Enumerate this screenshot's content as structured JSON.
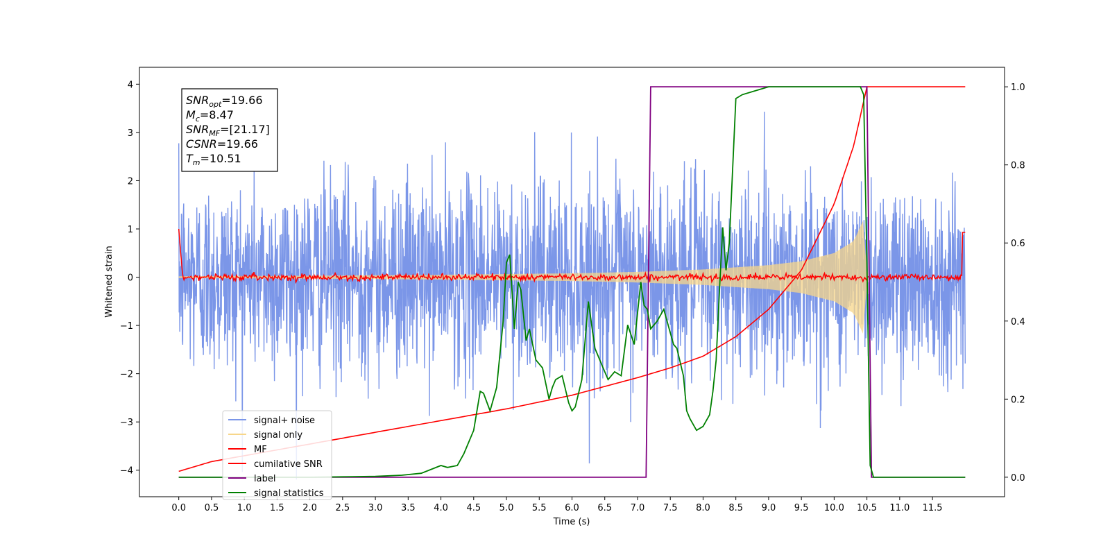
{
  "chart_data": {
    "type": "line",
    "xlabel": "Time (s)",
    "ylabel": "Whitened strain",
    "xlim": [
      -0.6,
      12.6
    ],
    "ylim": [
      -4.55,
      4.35
    ],
    "y2lim": [
      -0.05,
      1.05
    ],
    "x_ticks": [
      0.0,
      0.5,
      1.0,
      1.5,
      2.0,
      2.5,
      3.0,
      3.5,
      4.0,
      4.5,
      5.0,
      5.5,
      6.0,
      6.5,
      7.0,
      7.5,
      8.0,
      8.5,
      9.0,
      9.5,
      10.0,
      10.5,
      11.0,
      11.5
    ],
    "x_tick_labels": [
      "0.0",
      "0.5",
      "1.0",
      "1.5",
      "2.0",
      "2.5",
      "3.0",
      "3.5",
      "4.0",
      "4.5",
      "5.0",
      "5.5",
      "6.0",
      "6.5",
      "7.0",
      "7.5",
      "8.0",
      "8.5",
      "9.0",
      "9.5",
      "10.0",
      "10.5",
      "11.0",
      "11.5"
    ],
    "y_ticks": [
      -4,
      -3,
      -2,
      -1,
      0,
      1,
      2,
      3,
      4
    ],
    "y_tick_labels": [
      "−4",
      "−3",
      "−2",
      "−1",
      "0",
      "1",
      "2",
      "3",
      "4"
    ],
    "y2_ticks": [
      0.0,
      0.2,
      0.4,
      0.6,
      0.8,
      1.0
    ],
    "y2_tick_labels": [
      "0.0",
      "0.2",
      "0.4",
      "0.6",
      "0.8",
      "1.0"
    ],
    "grid": false,
    "legend_position": "lower-left",
    "legend": [
      {
        "label": "signal+ noise",
        "color": "#7b96e8"
      },
      {
        "label": "signal only",
        "color": "#f7d68a"
      },
      {
        "label": "MF",
        "color": "#ff0000"
      },
      {
        "label": "cumilative SNR",
        "color": "#ff0000"
      },
      {
        "label": "label",
        "color": "#800080"
      },
      {
        "label": "signal statistics",
        "color": "#008000"
      }
    ],
    "series": [
      {
        "name": "signal+ noise",
        "axis": "left",
        "color": "#7b96e8",
        "x_range": [
          0.0,
          12.0
        ],
        "amplitude_rms": 1.0,
        "peak_range": [
          -4.2,
          3.5
        ]
      },
      {
        "name": "signal only",
        "axis": "left",
        "color": "#f7d68a",
        "x_range": [
          0.0,
          12.0
        ],
        "envelope_x": [
          0,
          2,
          4,
          6,
          7,
          8,
          9,
          9.5,
          10.0,
          10.3,
          10.45,
          10.5
        ],
        "envelope_y": [
          0.02,
          0.03,
          0.05,
          0.08,
          0.11,
          0.16,
          0.25,
          0.33,
          0.5,
          0.75,
          1.2,
          0.0
        ]
      },
      {
        "name": "MF",
        "axis": "left",
        "color": "#ff0000",
        "x_range": [
          0.0,
          12.0
        ],
        "level": 0.0,
        "noise": 0.06,
        "start_value": 1.0,
        "end_value": 0.93
      },
      {
        "name": "cumilative SNR",
        "axis": "right",
        "color": "#ff0000",
        "x": [
          0.0,
          0.5,
          1.0,
          2.0,
          3.0,
          4.0,
          5.0,
          6.0,
          7.0,
          7.5,
          8.0,
          8.5,
          9.0,
          9.5,
          10.0,
          10.3,
          10.5,
          10.52,
          12.0
        ],
        "y": [
          0.015,
          0.04,
          0.055,
          0.085,
          0.115,
          0.145,
          0.175,
          0.21,
          0.255,
          0.28,
          0.31,
          0.36,
          0.43,
          0.53,
          0.7,
          0.85,
          1.0,
          1.0,
          1.0
        ]
      },
      {
        "name": "label",
        "axis": "right",
        "color": "#800080",
        "x": [
          0.0,
          7.13,
          7.2,
          10.5,
          10.57,
          12.0
        ],
        "y": [
          0.0,
          0.0,
          1.0,
          1.0,
          0.0,
          0.0
        ]
      },
      {
        "name": "signal statistics",
        "axis": "right",
        "color": "#008000",
        "x": [
          0.0,
          0.5,
          1.0,
          1.5,
          2.0,
          2.5,
          3.0,
          3.4,
          3.7,
          4.0,
          4.1,
          4.25,
          4.35,
          4.5,
          4.6,
          4.65,
          4.75,
          4.85,
          4.95,
          5.0,
          5.05,
          5.12,
          5.18,
          5.22,
          5.3,
          5.35,
          5.45,
          5.55,
          5.65,
          5.7,
          5.75,
          5.85,
          5.95,
          6.0,
          6.05,
          6.15,
          6.25,
          6.35,
          6.45,
          6.55,
          6.65,
          6.75,
          6.85,
          6.95,
          7.05,
          7.1,
          7.15,
          7.2,
          7.3,
          7.4,
          7.5,
          7.55,
          7.6,
          7.7,
          7.75,
          7.8,
          7.9,
          8.0,
          8.1,
          8.15,
          8.2,
          8.25,
          8.3,
          8.35,
          8.4,
          8.5,
          8.6,
          8.8,
          9.0,
          9.2,
          9.5,
          10.0,
          10.3,
          10.4,
          10.45,
          10.5,
          10.55,
          10.6,
          12.0
        ],
        "y": [
          0.0,
          0.0,
          0.0,
          0.0,
          0.0,
          0.001,
          0.002,
          0.005,
          0.01,
          0.03,
          0.025,
          0.03,
          0.06,
          0.12,
          0.22,
          0.215,
          0.17,
          0.23,
          0.4,
          0.55,
          0.57,
          0.38,
          0.5,
          0.48,
          0.35,
          0.38,
          0.3,
          0.28,
          0.2,
          0.23,
          0.25,
          0.26,
          0.19,
          0.17,
          0.18,
          0.25,
          0.45,
          0.33,
          0.29,
          0.25,
          0.27,
          0.26,
          0.39,
          0.34,
          0.5,
          0.44,
          0.43,
          0.38,
          0.4,
          0.43,
          0.37,
          0.34,
          0.33,
          0.26,
          0.17,
          0.15,
          0.12,
          0.13,
          0.16,
          0.22,
          0.3,
          0.48,
          0.64,
          0.53,
          0.6,
          0.97,
          0.98,
          0.99,
          1.0,
          1.0,
          1.0,
          1.0,
          1.0,
          1.0,
          0.98,
          0.55,
          0.03,
          0.0,
          0.0
        ]
      }
    ],
    "annotations": [
      {
        "base": "SNR",
        "sub": "opt",
        "value": "=19.66"
      },
      {
        "base": "M",
        "sub": "c",
        "value": "=8.47"
      },
      {
        "base": "SNR",
        "sub": "MF",
        "value": "=[21.17]"
      },
      {
        "base": "CSNR",
        "sub": "",
        "value": "=19.66"
      },
      {
        "base": "T",
        "sub": "m",
        "value": "=10.51"
      }
    ]
  }
}
